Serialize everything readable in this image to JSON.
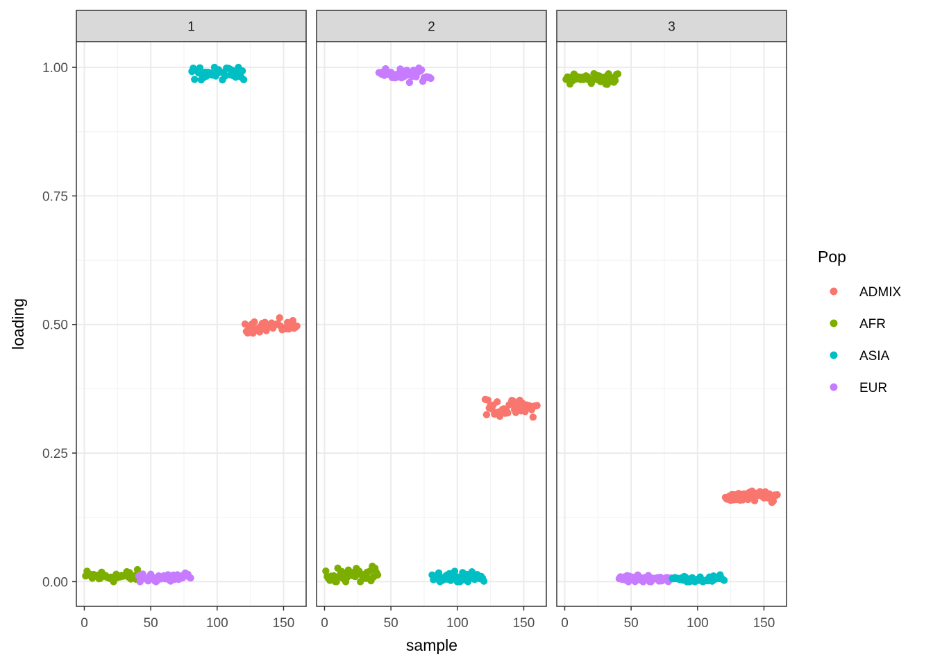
{
  "chart_data": {
    "type": "scatter",
    "facets": [
      "1",
      "2",
      "3"
    ],
    "xlabel": "sample",
    "ylabel": "loading",
    "xlim": [
      -6,
      167
    ],
    "ylim": [
      -0.048,
      1.05
    ],
    "x_ticks": [
      0,
      50,
      100,
      150
    ],
    "x_tick_labels": [
      "0",
      "50",
      "100",
      "150"
    ],
    "y_ticks": [
      0,
      0.25,
      0.5,
      0.75,
      1.0
    ],
    "y_tick_labels": [
      "0.00",
      "0.25",
      "0.50",
      "0.75",
      "1.00"
    ],
    "grid": true,
    "legend": {
      "title": "Pop",
      "position": "right",
      "entries": [
        {
          "name": "ADMIX",
          "color": "#F8766D"
        },
        {
          "name": "AFR",
          "color": "#7CAE00"
        },
        {
          "name": "ASIA",
          "color": "#00BFC4"
        },
        {
          "name": "EUR",
          "color": "#C77CFF"
        }
      ]
    },
    "series": [
      {
        "facet": "1",
        "groups": [
          {
            "name": "AFR",
            "x_range": [
              1,
              40
            ],
            "center": 0.01,
            "spread": 0.012
          },
          {
            "name": "EUR",
            "x_range": [
              41,
              80
            ],
            "center": 0.008,
            "spread": 0.012
          },
          {
            "name": "ASIA",
            "x_range": [
              81,
              120
            ],
            "center": 0.988,
            "spread": 0.012
          },
          {
            "name": "ADMIX",
            "x_range": [
              121,
              160
            ],
            "center": 0.497,
            "spread": 0.012
          }
        ]
      },
      {
        "facet": "2",
        "groups": [
          {
            "name": "AFR",
            "x_range": [
              1,
              40
            ],
            "center": 0.012,
            "spread": 0.015
          },
          {
            "name": "EUR",
            "x_range": [
              41,
              80
            ],
            "center": 0.985,
            "spread": 0.012
          },
          {
            "name": "ASIA",
            "x_range": [
              81,
              120
            ],
            "center": 0.01,
            "spread": 0.013
          },
          {
            "name": "ADMIX",
            "x_range": [
              121,
              160
            ],
            "center": 0.337,
            "spread": 0.015
          }
        ]
      },
      {
        "facet": "3",
        "groups": [
          {
            "name": "AFR",
            "x_range": [
              1,
              40
            ],
            "center": 0.978,
            "spread": 0.012
          },
          {
            "name": "EUR",
            "x_range": [
              41,
              80
            ],
            "center": 0.006,
            "spread": 0.008
          },
          {
            "name": "ASIA",
            "x_range": [
              81,
              120
            ],
            "center": 0.005,
            "spread": 0.007
          },
          {
            "name": "ADMIX",
            "x_range": [
              121,
              160
            ],
            "center": 0.165,
            "spread": 0.012
          }
        ]
      }
    ]
  }
}
